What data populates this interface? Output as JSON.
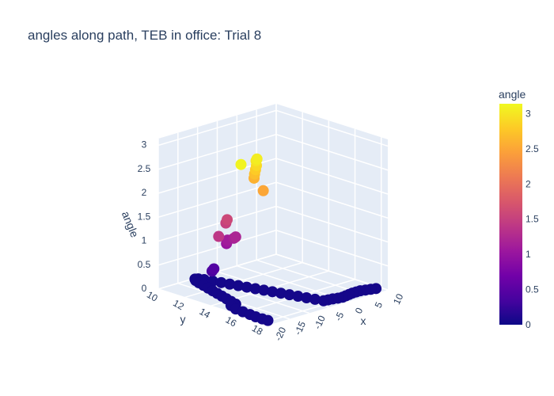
{
  "chart_data": {
    "type": "scatter3d",
    "title": "angles along path, TEB in office: Trial 8",
    "axes": {
      "x": {
        "label": "x",
        "ticks": [
          "-20",
          "-15",
          "-10",
          "-5",
          "0",
          "5",
          "10"
        ],
        "range": [
          -20,
          10
        ]
      },
      "y": {
        "label": "y",
        "ticks": [
          "10",
          "12",
          "14",
          "16",
          "18"
        ],
        "range": [
          10,
          18.5
        ]
      },
      "z": {
        "label": "angle",
        "ticks": [
          "0",
          "0.5",
          "1",
          "1.5",
          "2",
          "2.5",
          "3"
        ],
        "range": [
          0,
          3.14
        ]
      }
    },
    "colorbar": {
      "title": "angle",
      "ticks": [
        "0",
        "0.5",
        "1",
        "1.5",
        "2",
        "2.5",
        "3"
      ],
      "range": [
        0,
        3.14
      ],
      "colorscale": [
        "#0d0887",
        "#46039f",
        "#7201a8",
        "#9c179e",
        "#bd3786",
        "#d8576b",
        "#ed7953",
        "#fb9f3a",
        "#fdca26",
        "#f0f921"
      ]
    },
    "points": [
      {
        "x": 8,
        "y": 18.2,
        "z": 0.05
      },
      {
        "x": 7,
        "y": 18.1,
        "z": 0.05
      },
      {
        "x": 6,
        "y": 18.0,
        "z": 0.05
      },
      {
        "x": 5,
        "y": 17.9,
        "z": 0.05
      },
      {
        "x": 4,
        "y": 17.9,
        "z": 0.05
      },
      {
        "x": 3,
        "y": 17.9,
        "z": 0.05
      },
      {
        "x": 2,
        "y": 17.95,
        "z": 0.05
      },
      {
        "x": 1,
        "y": 18.0,
        "z": 0.05
      },
      {
        "x": 0,
        "y": 18.05,
        "z": 0.05
      },
      {
        "x": -1,
        "y": 18.0,
        "z": 0.05
      },
      {
        "x": -2,
        "y": 17.9,
        "z": 0.05
      },
      {
        "x": -3,
        "y": 17.85,
        "z": 0.05
      },
      {
        "x": -4,
        "y": 17.8,
        "z": 0.05
      },
      {
        "x": -4.5,
        "y": 17.3,
        "z": 0.05
      },
      {
        "x": -5,
        "y": 16.8,
        "z": 0.05
      },
      {
        "x": -5.5,
        "y": 16.3,
        "z": 0.05
      },
      {
        "x": -6,
        "y": 15.8,
        "z": 0.05
      },
      {
        "x": -6.5,
        "y": 15.3,
        "z": 0.05
      },
      {
        "x": -7,
        "y": 14.8,
        "z": 0.05
      },
      {
        "x": -7.5,
        "y": 14.3,
        "z": 0.05
      },
      {
        "x": -8,
        "y": 13.8,
        "z": 0.05
      },
      {
        "x": -8.5,
        "y": 13.3,
        "z": 0.05
      },
      {
        "x": -9,
        "y": 12.8,
        "z": 0.05
      },
      {
        "x": -9.5,
        "y": 12.3,
        "z": 0.05
      },
      {
        "x": -10,
        "y": 11.8,
        "z": 0.05
      },
      {
        "x": -10.5,
        "y": 11.3,
        "z": 0.05
      },
      {
        "x": -11,
        "y": 10.8,
        "z": 0.05
      },
      {
        "x": -11.5,
        "y": 10.5,
        "z": 0.05
      },
      {
        "x": -12,
        "y": 10.4,
        "z": 0.05
      },
      {
        "x": -12.5,
        "y": 10.6,
        "z": 0.05
      },
      {
        "x": -13,
        "y": 11.0,
        "z": 0.05
      },
      {
        "x": -13.5,
        "y": 11.5,
        "z": 0.05
      },
      {
        "x": -14,
        "y": 12.0,
        "z": 0.05
      },
      {
        "x": -14.5,
        "y": 12.5,
        "z": 0.05
      },
      {
        "x": -15,
        "y": 13.0,
        "z": 0.05
      },
      {
        "x": -15.5,
        "y": 13.5,
        "z": 0.05
      },
      {
        "x": -16,
        "y": 14.0,
        "z": 0.05
      },
      {
        "x": -16.5,
        "y": 14.5,
        "z": 0.05
      },
      {
        "x": -17,
        "y": 15.0,
        "z": 0.05
      },
      {
        "x": -18.2,
        "y": 15.0,
        "z": 0.05
      },
      {
        "x": -19,
        "y": 15.6,
        "z": 0.05
      },
      {
        "x": -19.2,
        "y": 16.2,
        "z": 0.05
      },
      {
        "x": -19.4,
        "y": 16.8,
        "z": 0.05
      },
      {
        "x": -19.6,
        "y": 17.3,
        "z": 0.05
      },
      {
        "x": -19.6,
        "y": 17.8,
        "z": 0.05
      },
      {
        "x": -19.5,
        "y": 18.2,
        "z": 0.05
      },
      {
        "x": -13,
        "y": 12.0,
        "z": 0.38
      },
      {
        "x": -13.2,
        "y": 12.2,
        "z": 0.45
      },
      {
        "x": -12,
        "y": 12.8,
        "z": 1.0
      },
      {
        "x": -12.2,
        "y": 12.9,
        "z": 1.05
      },
      {
        "x": -12.4,
        "y": 13.0,
        "z": 1.1
      },
      {
        "x": -11.8,
        "y": 13.3,
        "z": 1.15
      },
      {
        "x": -12,
        "y": 13.5,
        "z": 1.2
      },
      {
        "x": -13.5,
        "y": 13.2,
        "z": 1.5
      },
      {
        "x": -13.5,
        "y": 13.3,
        "z": 1.58
      },
      {
        "x": -18,
        "y": 14.0,
        "z": 1.4
      },
      {
        "x": -13,
        "y": 15.2,
        "z": 2.6
      },
      {
        "x": -13.2,
        "y": 15.3,
        "z": 2.7
      },
      {
        "x": -13.3,
        "y": 15.4,
        "z": 2.8
      },
      {
        "x": -13.4,
        "y": 15.5,
        "z": 2.9
      },
      {
        "x": -13.5,
        "y": 15.5,
        "z": 3.0
      },
      {
        "x": -13.6,
        "y": 15.6,
        "z": 3.05
      },
      {
        "x": -15,
        "y": 16.5,
        "z": 2.5
      },
      {
        "x": -19,
        "y": 16.0,
        "z": 3.1
      }
    ]
  }
}
